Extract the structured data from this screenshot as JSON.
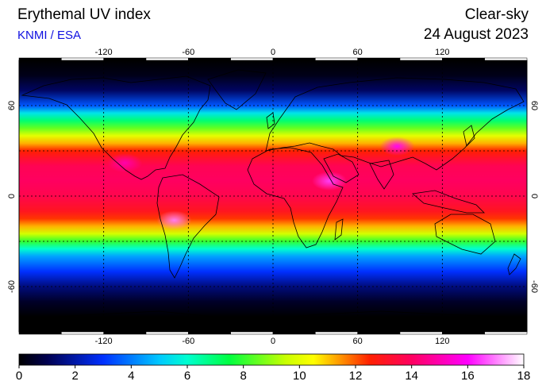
{
  "header": {
    "title": "Erythemal UV index",
    "credit": "KNMI / ESA",
    "mode": "Clear-sky",
    "date": "24 August 2023"
  },
  "map": {
    "projection": "equirectangular",
    "lon_range": [
      -180,
      180
    ],
    "lat_range": [
      -90,
      90
    ],
    "grid_lon": [
      -120,
      -60,
      0,
      60,
      120
    ],
    "grid_lat": [
      60,
      30,
      0,
      -30,
      -60
    ],
    "lon_labels": [
      "-120",
      "-60",
      "0",
      "60",
      "120"
    ],
    "lat_labels": [
      "60",
      "0",
      "-60"
    ],
    "lat_label_values": [
      60,
      0,
      -60
    ],
    "uv_by_latitude": [
      [
        90,
        0
      ],
      [
        80,
        0.3
      ],
      [
        70,
        1.2
      ],
      [
        60,
        3.5
      ],
      [
        55,
        5.5
      ],
      [
        50,
        7
      ],
      [
        45,
        8.5
      ],
      [
        40,
        10
      ],
      [
        35,
        11.2
      ],
      [
        30,
        12.5
      ],
      [
        25,
        13.2
      ],
      [
        20,
        13.8
      ],
      [
        10,
        14
      ],
      [
        0,
        13.7
      ],
      [
        -10,
        13
      ],
      [
        -15,
        12.3
      ],
      [
        -20,
        11.2
      ],
      [
        -25,
        9.7
      ],
      [
        -30,
        8
      ],
      [
        -35,
        6
      ],
      [
        -40,
        4.5
      ],
      [
        -50,
        3
      ],
      [
        -60,
        1.5
      ],
      [
        -70,
        0.5
      ],
      [
        -80,
        0
      ],
      [
        -90,
        0
      ]
    ],
    "hotspots": [
      {
        "lon": 40,
        "lat": 10,
        "uv": 16.5
      },
      {
        "lon": -70,
        "lat": -16,
        "uv": 17
      },
      {
        "lon": 88,
        "lat": 33,
        "uv": 16
      },
      {
        "lon": -105,
        "lat": 22,
        "uv": 15
      }
    ]
  },
  "colorbar": {
    "min": 0,
    "max": 18,
    "ticks": [
      "0",
      "2",
      "4",
      "6",
      "8",
      "10",
      "12",
      "14",
      "16",
      "18"
    ],
    "tick_values": [
      0,
      2,
      4,
      6,
      8,
      10,
      12,
      14,
      16,
      18
    ],
    "stops": [
      {
        "v": 0,
        "c": "#000000"
      },
      {
        "v": 1,
        "c": "#000050"
      },
      {
        "v": 3,
        "c": "#0030ff"
      },
      {
        "v": 5,
        "c": "#00c8ff"
      },
      {
        "v": 6,
        "c": "#00ffd0"
      },
      {
        "v": 7.5,
        "c": "#00ff40"
      },
      {
        "v": 9.5,
        "c": "#c8ff00"
      },
      {
        "v": 10.5,
        "c": "#ffff00"
      },
      {
        "v": 11.5,
        "c": "#ff9000"
      },
      {
        "v": 12.5,
        "c": "#ff2000"
      },
      {
        "v": 14,
        "c": "#ff0060"
      },
      {
        "v": 16,
        "c": "#ff00ff"
      },
      {
        "v": 18,
        "c": "#ffffff"
      }
    ]
  }
}
